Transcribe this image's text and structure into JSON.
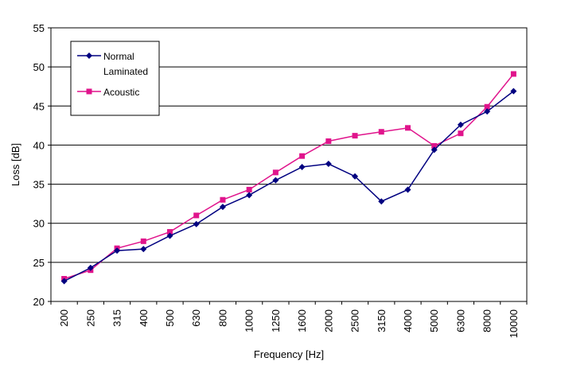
{
  "chart_data": {
    "type": "line",
    "title": "",
    "xlabel": "Frequency [Hz]",
    "ylabel": "Loss  [dB]",
    "categories": [
      "200",
      "250",
      "315",
      "400",
      "500",
      "630",
      "800",
      "1000",
      "1250",
      "1600",
      "2000",
      "2500",
      "3150",
      "4000",
      "5000",
      "6300",
      "8000",
      "10000"
    ],
    "ylim": [
      20,
      55
    ],
    "yticks": [
      20,
      25,
      30,
      35,
      40,
      45,
      50,
      55
    ],
    "grid": "horizontal",
    "legend_position": "top-left",
    "series": [
      {
        "name": "Normal Laminated",
        "legend_lines": [
          "Normal",
          "Laminated"
        ],
        "color": "#000080",
        "marker": "diamond",
        "values": [
          22.6,
          24.3,
          26.5,
          26.7,
          28.4,
          29.9,
          32.1,
          33.6,
          35.5,
          37.2,
          37.6,
          36.0,
          32.8,
          34.3,
          39.4,
          42.6,
          44.3,
          46.9
        ]
      },
      {
        "name": "Acoustic",
        "legend_lines": [
          "Acoustic"
        ],
        "color": "#e0148c",
        "marker": "square",
        "values": [
          22.9,
          24.0,
          26.8,
          27.7,
          28.9,
          31.0,
          33.0,
          34.3,
          36.5,
          38.6,
          40.5,
          41.2,
          41.7,
          42.2,
          39.9,
          41.5,
          44.9,
          49.1
        ]
      }
    ]
  }
}
